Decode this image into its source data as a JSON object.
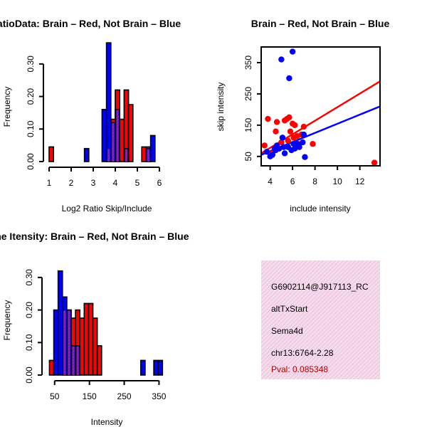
{
  "colors": {
    "red": "#ff0000",
    "blue": "#0000ff",
    "purple": "#a020f0",
    "hatch": "#ea9fd2",
    "pval": "#b30000"
  },
  "info_box": {
    "line1": "G6902114@J917113_RC",
    "line2": "altTxStart",
    "line3": "Sema4d",
    "line4": "chr13:6764-2.28",
    "pval": "Pval: 0.085348"
  },
  "chart_data": [
    {
      "type": "bar",
      "title": "RatioData: Brain – Red, Not Brain – Blue",
      "xlabel": "Log2 Ratio Skip/Include",
      "ylabel": "Frequency",
      "xlim": [
        1,
        6
      ],
      "ylim": [
        0,
        0.35
      ],
      "xticks": [
        "1",
        "2",
        "3",
        "4",
        "5",
        "6"
      ],
      "yticks": [
        "0.00",
        "0.10",
        "0.20",
        "0.30"
      ],
      "bin_width": 0.2,
      "series": [
        {
          "name": "Brain",
          "color": "red",
          "bins": [
            [
              1.0,
              0.045
            ],
            [
              3.6,
              0.04
            ],
            [
              3.8,
              0.13
            ],
            [
              4.0,
              0.22
            ],
            [
              4.2,
              0.13
            ],
            [
              4.4,
              0.22
            ],
            [
              4.6,
              0.175
            ],
            [
              5.2,
              0.045
            ],
            [
              5.4,
              0.045
            ]
          ]
        },
        {
          "name": "Not Brain",
          "color": "blue",
          "bins": [
            [
              2.6,
              0.04
            ],
            [
              3.4,
              0.16
            ],
            [
              3.6,
              0.365
            ],
            [
              3.8,
              0.12
            ],
            [
              4.0,
              0.16
            ],
            [
              4.4,
              0.04
            ],
            [
              5.4,
              0.04
            ],
            [
              5.6,
              0.08
            ]
          ]
        }
      ]
    },
    {
      "type": "scatter",
      "title": "Brain – Red, Not Brain – Blue",
      "xlabel": "include intensity",
      "ylabel": "skip intensity",
      "xlim": [
        3.2,
        13.8
      ],
      "ylim": [
        20,
        400
      ],
      "xticks": [
        "4",
        "6",
        "8",
        "10",
        "12"
      ],
      "yticks": [
        "50",
        "150",
        "250",
        "350"
      ],
      "series": [
        {
          "name": "Brain",
          "color": "red",
          "points": [
            [
              3.5,
              85
            ],
            [
              3.8,
              170
            ],
            [
              4.2,
              60
            ],
            [
              4.5,
              130
            ],
            [
              4.6,
              160
            ],
            [
              5.0,
              95
            ],
            [
              5.1,
              110
            ],
            [
              5.3,
              165
            ],
            [
              5.5,
              170
            ],
            [
              5.6,
              100
            ],
            [
              5.7,
              175
            ],
            [
              5.8,
              130
            ],
            [
              6.0,
              155
            ],
            [
              6.1,
              110
            ],
            [
              6.2,
              150
            ],
            [
              6.4,
              115
            ],
            [
              6.5,
              90
            ],
            [
              6.8,
              120
            ],
            [
              7.0,
              145
            ],
            [
              7.8,
              90
            ],
            [
              13.3,
              30
            ]
          ],
          "fit": [
            [
              3.2,
              60
            ],
            [
              13.8,
              290
            ]
          ]
        },
        {
          "name": "Not Brain",
          "color": "blue",
          "points": [
            [
              3.7,
              65
            ],
            [
              4.0,
              50
            ],
            [
              4.2,
              55
            ],
            [
              4.4,
              75
            ],
            [
              4.5,
              70
            ],
            [
              4.6,
              85
            ],
            [
              4.8,
              75
            ],
            [
              5.0,
              360
            ],
            [
              5.1,
              110
            ],
            [
              5.2,
              80
            ],
            [
              5.3,
              60
            ],
            [
              5.6,
              80
            ],
            [
              5.7,
              300
            ],
            [
              5.9,
              70
            ],
            [
              6.0,
              385
            ],
            [
              6.1,
              90
            ],
            [
              6.2,
              75
            ],
            [
              6.4,
              90
            ],
            [
              6.6,
              80
            ],
            [
              6.9,
              95
            ],
            [
              7.0,
              120
            ],
            [
              7.1,
              48
            ]
          ],
          "fit": [
            [
              3.2,
              55
            ],
            [
              13.8,
              210
            ]
          ]
        }
      ]
    },
    {
      "type": "bar",
      "title": "Gene Itensity: Brain – Red, Not Brain – Blue",
      "xlabel": "Intensity",
      "ylabel": "Frequency",
      "xlim": [
        30,
        390
      ],
      "ylim": [
        0,
        0.35
      ],
      "xticks": [
        "50",
        "150",
        "250",
        "350"
      ],
      "xtick_values": [
        50,
        150,
        250,
        350
      ],
      "yticks": [
        "0.00",
        "0.10",
        "0.20",
        "0.30"
      ],
      "bin_width": 12.5,
      "series": [
        {
          "name": "Brain",
          "color": "red",
          "bins": [
            [
              35,
              0.045
            ],
            [
              72.5,
              0.2
            ],
            [
              85,
              0.2
            ],
            [
              97.5,
              0.175
            ],
            [
              110,
              0.2
            ],
            [
              122.5,
              0.175
            ],
            [
              135,
              0.22
            ],
            [
              147.5,
              0.22
            ],
            [
              160,
              0.175
            ],
            [
              172.5,
              0.09
            ]
          ]
        },
        {
          "name": "Not Brain",
          "color": "blue",
          "bins": [
            [
              47.5,
              0.2
            ],
            [
              60,
              0.32
            ],
            [
              72.5,
              0.24
            ],
            [
              85,
              0.2
            ],
            [
              97.5,
              0.09
            ],
            [
              110,
              0.09
            ],
            [
              297.5,
              0.045
            ],
            [
              335,
              0.045
            ],
            [
              347.5,
              0.045
            ]
          ]
        }
      ]
    }
  ]
}
